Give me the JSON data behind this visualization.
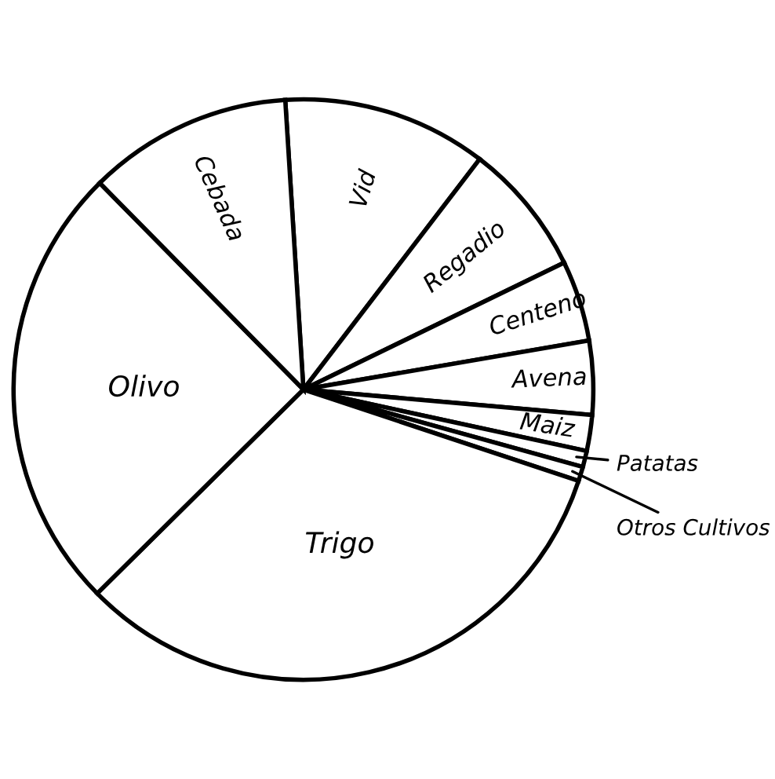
{
  "chart_data": {
    "type": "pie",
    "categories": [
      "Vid",
      "Regadio",
      "Centeno",
      "Avena",
      "Maiz",
      "Patatas",
      "Otros Cultivos",
      "Trigo",
      "Olivo",
      "Cebada"
    ],
    "values": [
      11.4,
      7.4,
      4.5,
      4.1,
      2.0,
      0.9,
      0.8,
      32.5,
      25.0,
      11.4
    ],
    "colors": [
      "#ffffff",
      "#ffffff",
      "#ffffff",
      "#ffffff",
      "#ffffff",
      "#ffffff",
      "#ffffff",
      "#ffffff",
      "#ffffff",
      "#ffffff"
    ]
  }
}
